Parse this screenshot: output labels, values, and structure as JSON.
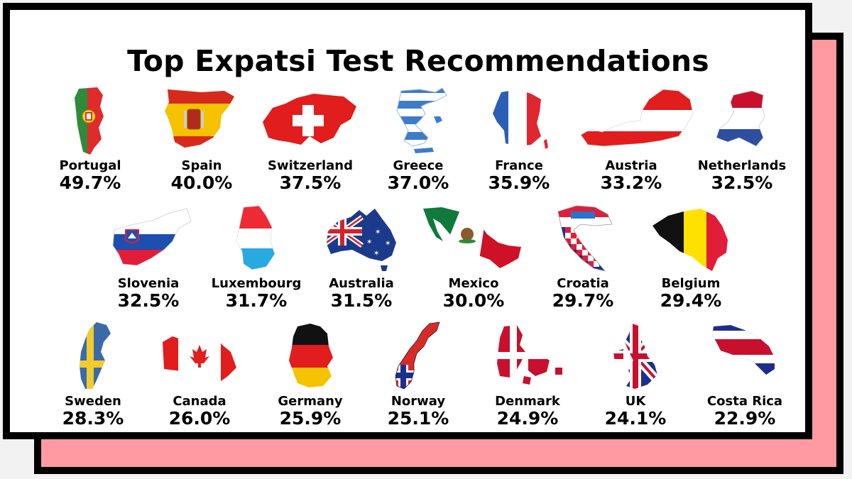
{
  "title": "Top Expatsi Test Recommendations",
  "countries": [
    {
      "name": "Portugal",
      "percent": "49.7%",
      "icon": "portugal-flag-map-icon"
    },
    {
      "name": "Spain",
      "percent": "40.0%",
      "icon": "spain-flag-map-icon"
    },
    {
      "name": "Switzerland",
      "percent": "37.5%",
      "icon": "switzerland-flag-map-icon"
    },
    {
      "name": "Greece",
      "percent": "37.0%",
      "icon": "greece-flag-map-icon"
    },
    {
      "name": "France",
      "percent": "35.9%",
      "icon": "france-flag-map-icon"
    },
    {
      "name": "Austria",
      "percent": "33.2%",
      "icon": "austria-flag-map-icon"
    },
    {
      "name": "Netherlands",
      "percent": "32.5%",
      "icon": "netherlands-flag-map-icon"
    },
    {
      "name": "Slovenia",
      "percent": "32.5%",
      "icon": "slovenia-flag-map-icon"
    },
    {
      "name": "Luxembourg",
      "percent": "31.7%",
      "icon": "luxembourg-flag-map-icon"
    },
    {
      "name": "Australia",
      "percent": "31.5%",
      "icon": "australia-flag-map-icon"
    },
    {
      "name": "Mexico",
      "percent": "30.0%",
      "icon": "mexico-flag-map-icon"
    },
    {
      "name": "Croatia",
      "percent": "29.7%",
      "icon": "croatia-flag-map-icon"
    },
    {
      "name": "Belgium",
      "percent": "29.4%",
      "icon": "belgium-flag-map-icon"
    },
    {
      "name": "Sweden",
      "percent": "28.3%",
      "icon": "sweden-flag-map-icon"
    },
    {
      "name": "Canada",
      "percent": "26.0%",
      "icon": "canada-flag-map-icon"
    },
    {
      "name": "Germany",
      "percent": "25.9%",
      "icon": "germany-flag-map-icon"
    },
    {
      "name": "Norway",
      "percent": "25.1%",
      "icon": "norway-flag-map-icon"
    },
    {
      "name": "Denmark",
      "percent": "24.9%",
      "icon": "denmark-flag-map-icon"
    },
    {
      "name": "UK",
      "percent": "24.1%",
      "icon": "uk-flag-map-icon"
    },
    {
      "name": "Costa Rica",
      "percent": "22.9%",
      "icon": "costa-rica-flag-map-icon"
    }
  ],
  "colors": {
    "frame": "#000000",
    "shadow": "#ff9aa2",
    "card": "#ffffff",
    "text": "#000000"
  }
}
